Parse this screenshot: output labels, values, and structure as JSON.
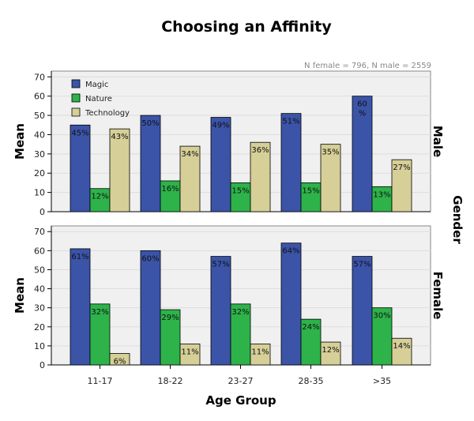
{
  "chart_data": {
    "type": "bar",
    "title": "Choosing an Affinity",
    "note": "N female = 796, N male = 2559",
    "xlabel": "Age Group",
    "ylabel": "Mean",
    "facet_label": "Gender",
    "categories": [
      "11-17",
      "18-22",
      "23-27",
      "28-35",
      ">35"
    ],
    "ylim": [
      0,
      70
    ],
    "yticks": [
      0,
      10,
      20,
      30,
      40,
      50,
      60,
      70
    ],
    "grid": true,
    "legend_position": "top-left",
    "colors": {
      "Magic": "#3b54a8",
      "Nature": "#2db34a",
      "Technology": "#d6cf97"
    },
    "panels": [
      {
        "name": "Male",
        "series": [
          {
            "name": "Magic",
            "values": [
              45,
              50,
              49,
              51,
              60
            ],
            "labels": [
              "45%",
              "50%",
              "49%",
              "51%",
              "60%"
            ]
          },
          {
            "name": "Nature",
            "values": [
              12,
              16,
              15,
              15,
              13
            ],
            "labels": [
              "12%",
              "16%",
              "15%",
              "15%",
              "13%"
            ]
          },
          {
            "name": "Technology",
            "values": [
              43,
              34,
              36,
              35,
              27
            ],
            "labels": [
              "43%",
              "34%",
              "36%",
              "35%",
              "27%"
            ]
          }
        ]
      },
      {
        "name": "Female",
        "series": [
          {
            "name": "Magic",
            "values": [
              61,
              60,
              57,
              64,
              57
            ],
            "labels": [
              "61%",
              "60%",
              "57%",
              "64%",
              "57%"
            ]
          },
          {
            "name": "Nature",
            "values": [
              32,
              29,
              32,
              24,
              30
            ],
            "labels": [
              "32%",
              "29%",
              "32%",
              "24%",
              "30%"
            ]
          },
          {
            "name": "Technology",
            "values": [
              6,
              11,
              11,
              12,
              14
            ],
            "labels": [
              "6%",
              "11%",
              "11%",
              "12%",
              "14%"
            ]
          }
        ]
      }
    ]
  }
}
